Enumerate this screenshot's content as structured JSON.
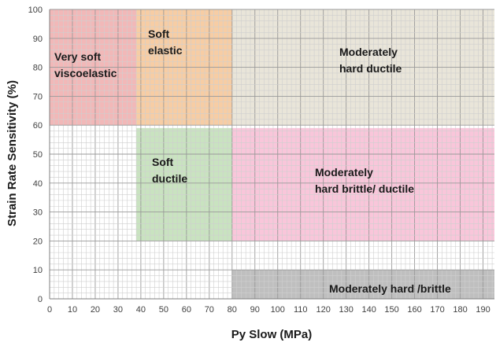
{
  "chart_data": {
    "type": "area",
    "xlabel": "Py Slow (MPa)",
    "ylabel": "Strain Rate Sensitivity (%)",
    "xlim": [
      0,
      195
    ],
    "ylim": [
      0,
      100
    ],
    "x_ticks": [
      0,
      10,
      20,
      30,
      40,
      50,
      60,
      70,
      80,
      90,
      100,
      110,
      120,
      130,
      140,
      150,
      160,
      170,
      180,
      190
    ],
    "y_ticks": [
      0,
      10,
      20,
      30,
      40,
      50,
      60,
      70,
      80,
      90,
      100
    ],
    "grid": true,
    "minor_grid_step": 2,
    "regions": [
      {
        "name": "very-soft-viscoelastic",
        "lines": [
          "Very soft",
          "viscoelastic"
        ],
        "x": [
          0,
          38
        ],
        "y": [
          60,
          100
        ],
        "color": "#f2b8b8"
      },
      {
        "name": "soft-elastic",
        "lines": [
          "Soft",
          "elastic"
        ],
        "x": [
          38,
          80
        ],
        "y": [
          60,
          100
        ],
        "color": "#f7cda4"
      },
      {
        "name": "moderately-hard-ductile",
        "lines": [
          "Moderately",
          "hard ductile"
        ],
        "x": [
          80,
          195
        ],
        "y": [
          60,
          100
        ],
        "color": "#e9e5d9"
      },
      {
        "name": "soft-ductile",
        "lines": [
          "Soft",
          "ductile"
        ],
        "x": [
          38,
          80
        ],
        "y": [
          20,
          59
        ],
        "color": "#c9e3c0"
      },
      {
        "name": "moderately-hard-brittle-ductile",
        "lines": [
          "Moderately",
          "hard brittle/ ductile"
        ],
        "x": [
          80,
          195
        ],
        "y": [
          20,
          59
        ],
        "color": "#f9c6da"
      },
      {
        "name": "moderately-hard-brittle",
        "lines": [
          "Moderately hard /brittle"
        ],
        "x": [
          80,
          195
        ],
        "y": [
          0,
          10
        ],
        "color": "#bfbfbf"
      }
    ]
  }
}
